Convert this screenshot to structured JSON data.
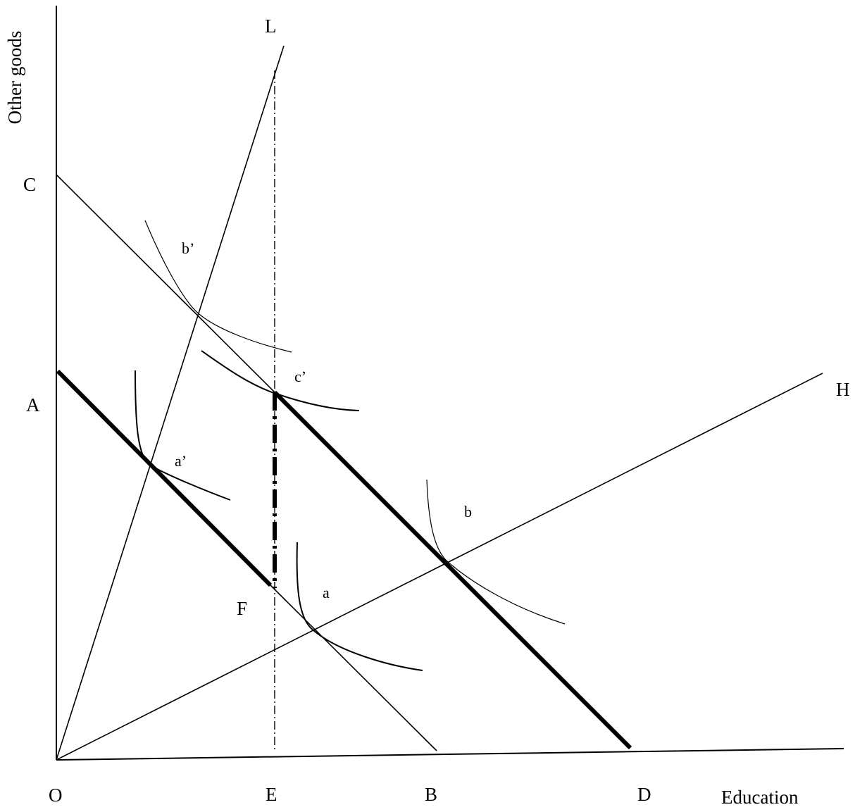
{
  "diagram": {
    "y_axis_title": "Other goods",
    "x_axis_title": "Education",
    "point_labels": {
      "L": "L",
      "C": "C",
      "A": "A",
      "H": "H",
      "F": "F",
      "O": "O",
      "E": "E",
      "B": "B",
      "D": "D"
    },
    "curve_labels": {
      "b_prime": "b’",
      "c_prime": "c’",
      "a_prime": "a’",
      "b": "b",
      "a": "a"
    },
    "colors": {
      "ink": "#000000",
      "background": "#ffffff"
    }
  }
}
